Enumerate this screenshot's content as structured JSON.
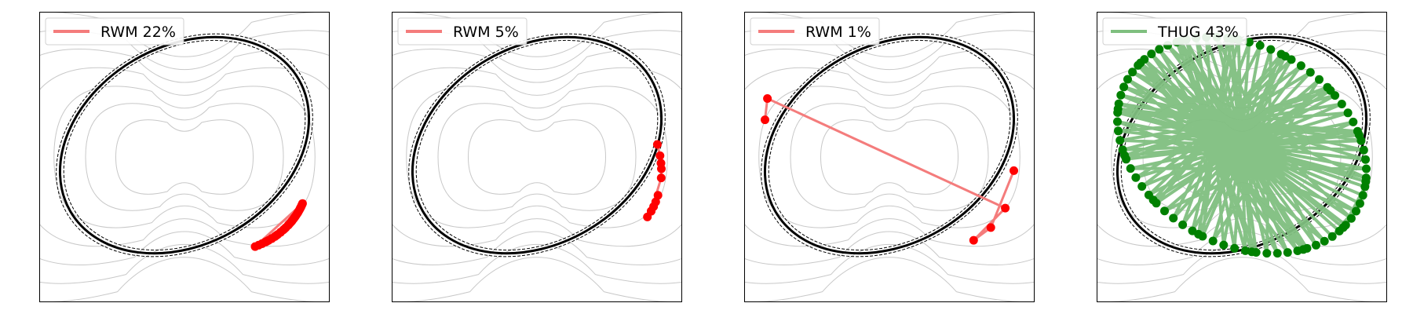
{
  "figure": {
    "panels": [
      {
        "legend_label": "RWM 22%",
        "series_color": "#ff0000",
        "line_color": "#f47c7c"
      },
      {
        "legend_label": "RWM 5%",
        "series_color": "#ff0000",
        "line_color": "#f47c7c"
      },
      {
        "legend_label": "RWM 1%",
        "series_color": "#ff0000",
        "line_color": "#f47c7c"
      },
      {
        "legend_label": "THUG 43%",
        "series_color": "#008000",
        "line_color": "#7fbf7f"
      }
    ],
    "colors": {
      "contour": "#c8c8c8",
      "manifold": "#000000",
      "inner_band": "#1f77b4",
      "band_dashes": "#000000"
    }
  },
  "chart_data": [
    {
      "type": "scatter",
      "title": "",
      "xlabel": "",
      "ylabel": "",
      "legend": "top-left",
      "grid": false,
      "axis_ticks": "hidden",
      "series": [
        {
          "name": "RWM 22%",
          "marker": "circle",
          "connected": true,
          "points_angle_deg": [
            -4,
            -3,
            -2,
            -1,
            0,
            1,
            2,
            3,
            4,
            5,
            6,
            7,
            8,
            9,
            10,
            12,
            14,
            16,
            18,
            20,
            22,
            24,
            26,
            28,
            30,
            32,
            -5,
            -2,
            1,
            4,
            7,
            10,
            13,
            16,
            19,
            22,
            25,
            28
          ]
        }
      ]
    },
    {
      "type": "scatter",
      "title": "",
      "xlabel": "",
      "ylabel": "",
      "legend": "top-left",
      "grid": false,
      "axis_ticks": "hidden",
      "series": [
        {
          "name": "RWM 5%",
          "marker": "circle",
          "connected": true,
          "points_angle_deg": [
            -38,
            -32,
            -28,
            -25,
            -20,
            0,
            -10,
            -6,
            -3,
            0,
            4
          ]
        }
      ]
    },
    {
      "type": "scatter",
      "title": "",
      "xlabel": "",
      "ylabel": "",
      "legend": "top-left",
      "grid": false,
      "axis_ticks": "hidden",
      "series": [
        {
          "name": "RWM 1%",
          "marker": "circle",
          "connected": true,
          "points_angle_deg": [
            -24,
            12,
            24,
            -2,
            168,
            156
          ]
        }
      ]
    },
    {
      "type": "scatter",
      "title": "",
      "xlabel": "",
      "ylabel": "",
      "legend": "top-left",
      "grid": false,
      "axis_ticks": "hidden",
      "series": [
        {
          "name": "THUG 43%",
          "marker": "circle",
          "connected": true,
          "points_angle_deg": [
            10,
            190,
            35,
            215,
            60,
            240,
            85,
            265,
            110,
            290,
            135,
            315,
            160,
            340,
            185,
            5,
            210,
            30,
            235,
            55,
            260,
            80,
            285,
            105,
            310,
            130,
            335,
            155,
            0,
            180,
            25,
            205,
            50,
            230,
            75,
            255,
            100,
            280,
            125,
            305,
            150,
            330,
            175,
            355,
            20,
            200,
            45,
            225,
            70,
            250,
            95,
            275,
            120,
            300,
            145,
            325,
            170,
            350,
            15,
            195,
            40,
            220,
            65,
            245,
            90,
            270,
            115,
            295,
            140,
            320,
            165,
            345,
            12,
            192,
            37,
            217,
            62,
            242,
            87,
            267,
            112,
            292,
            137,
            317,
            162,
            342
          ]
        }
      ]
    }
  ]
}
